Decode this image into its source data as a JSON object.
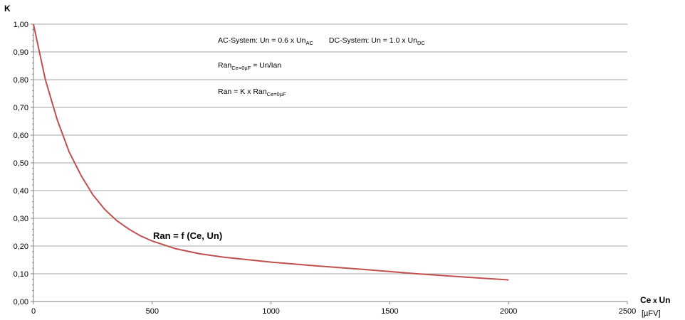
{
  "chart_data": {
    "type": "line",
    "ylabel": "K",
    "xlabel": {
      "main": "Ce",
      "mid": " x ",
      "main2": "Un"
    },
    "x_unit": "[µFV]",
    "xlim": [
      0,
      2500
    ],
    "ylim": [
      0,
      1.0
    ],
    "x_ticks": [
      0,
      500,
      1000,
      1500,
      2000,
      2500
    ],
    "y_ticks": [
      "0,00",
      "0,10",
      "0,20",
      "0,30",
      "0,40",
      "0,50",
      "0,60",
      "0,70",
      "0,80",
      "0,90",
      "1,00"
    ],
    "grid": "horizontal",
    "series": [
      {
        "name": "Ran = f (Ce, Un)",
        "label_parts": {
          "a": "Ran",
          "b": " = f (Ce, Un)"
        },
        "color": "#c0504d",
        "x": [
          0,
          50,
          100,
          150,
          200,
          250,
          300,
          350,
          400,
          450,
          500,
          600,
          700,
          800,
          1000,
          1200,
          1400,
          1600,
          1800,
          2000
        ],
        "y": [
          1.0,
          0.8,
          0.655,
          0.54,
          0.455,
          0.385,
          0.332,
          0.292,
          0.262,
          0.237,
          0.218,
          0.19,
          0.172,
          0.16,
          0.142,
          0.128,
          0.115,
          0.101,
          0.089,
          0.078
        ]
      }
    ],
    "annotations": {
      "line1": {
        "ac_prefix": "AC-System: ",
        "ac_un": "Un",
        "ac_mid": " = 0.6 x ",
        "ac_un2": "Un",
        "ac_sub": "AC",
        "dc_prefix": "DC-System: ",
        "dc_un": "Un",
        "dc_mid": " = 1.0 x ",
        "dc_un2": "Un",
        "dc_sub": "DC"
      },
      "line2": {
        "ran": "Ran",
        "ran_sub": "Ce=0µF",
        "eq": " = ",
        "un": "Un",
        "slash": "/",
        "ian": "Ian"
      },
      "line3": {
        "ran": "Ran",
        "mid": " = K x ",
        "ran2": "Ran",
        "ran2_sub": "Ce=0µF"
      }
    }
  }
}
